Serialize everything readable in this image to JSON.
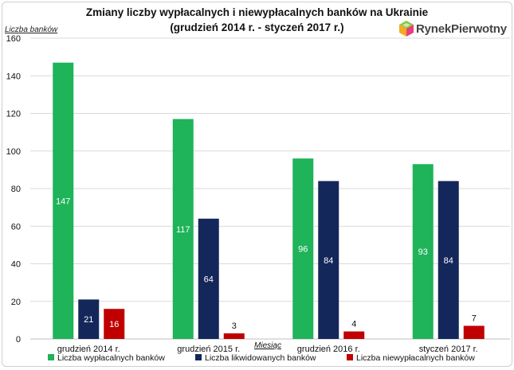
{
  "chart_data": {
    "type": "bar",
    "title": "Zmiany liczby wypłacalnych i niewypłacalnych banków na Ukrainie",
    "subtitle": "(grudzień 2014 r. - styczeń 2017 r.)",
    "xlabel": "Miesiąc",
    "ylabel": "Liczba banków",
    "ylim": [
      0,
      160
    ],
    "yticks": [
      0,
      20,
      40,
      60,
      80,
      100,
      120,
      140,
      160
    ],
    "categories": [
      "grudzień 2014 r.",
      "grudzień 2015 r.",
      "grudzień 2016 r.",
      "styczeń 2017 r."
    ],
    "series": [
      {
        "name": "Liczba wypłacalnych banków",
        "values": [
          147,
          117,
          96,
          93
        ],
        "color": "#1fb35a"
      },
      {
        "name": "Liczba likwidowanych banków",
        "values": [
          21,
          64,
          84,
          84
        ],
        "color": "#14275a"
      },
      {
        "name": "Liczba niewypłacalnych banków",
        "values": [
          16,
          3,
          4,
          7
        ],
        "color": "#c00000"
      }
    ],
    "grid": true,
    "legend_position": "bottom"
  },
  "logo": {
    "text": "RynekPierwotny"
  }
}
